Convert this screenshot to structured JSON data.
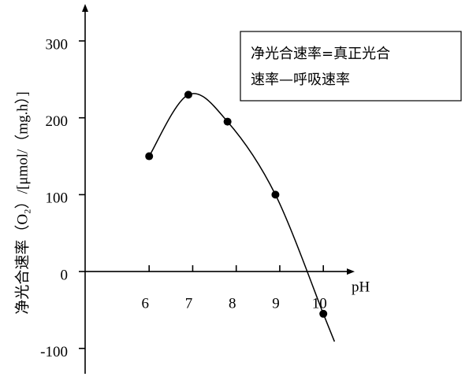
{
  "chart_data": {
    "type": "line",
    "x_label": "pH",
    "y_label": "净光合速率（O₂）/[μmol/（mg.h）]",
    "annotation": [
      "净光合速率=真正光合",
      "速率—呼吸速率"
    ],
    "x": [
      6,
      6.9,
      7.8,
      8.9,
      10
    ],
    "series": [
      {
        "name": null,
        "color": "#000000",
        "values": [
          150,
          230,
          195,
          100,
          -55
        ]
      }
    ],
    "xlim": [
      4.53,
      10.63
    ],
    "xticks": [
      6,
      7,
      8,
      9,
      10
    ],
    "ylim": [
      -133,
      343
    ],
    "yticks": [
      300,
      200,
      100,
      0,
      -100
    ],
    "grid": false
  }
}
